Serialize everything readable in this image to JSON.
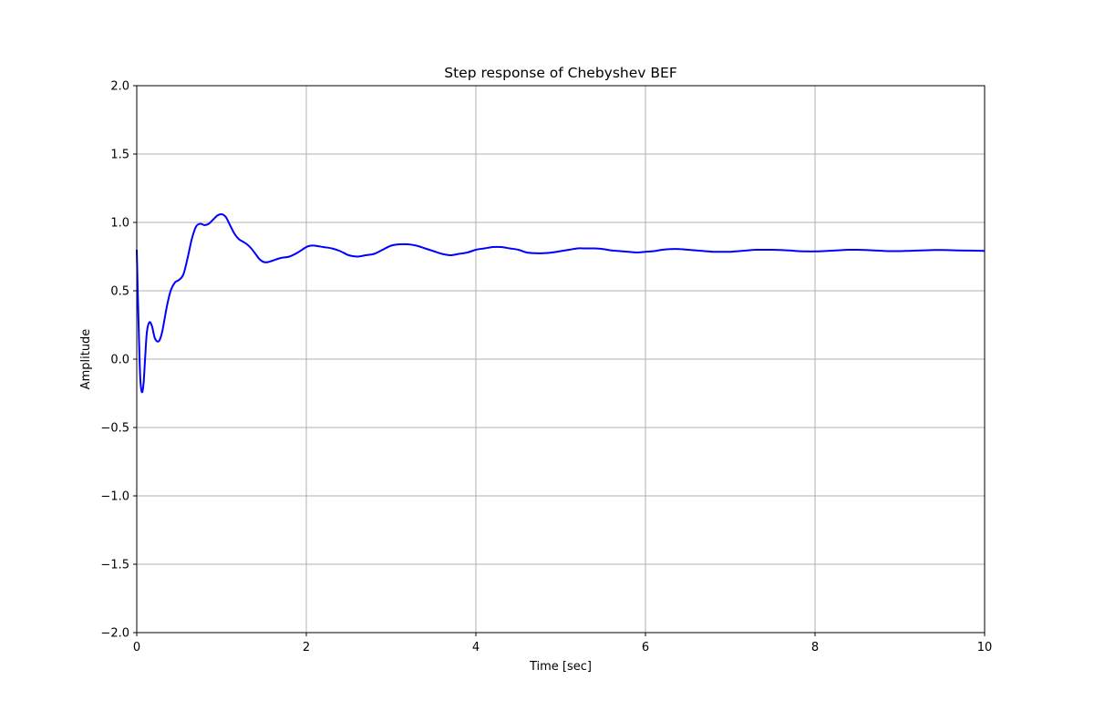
{
  "chart_data": {
    "type": "line",
    "title": "Step response of Chebyshev BEF",
    "xlabel": "Time  [sec]",
    "ylabel": "Amplitude",
    "xlim": [
      0,
      10
    ],
    "ylim": [
      -2.0,
      2.0
    ],
    "xticks": [
      0,
      2,
      4,
      6,
      8,
      10
    ],
    "xtick_labels": [
      "0",
      "2",
      "4",
      "6",
      "8",
      "10"
    ],
    "yticks": [
      -2.0,
      -1.5,
      -1.0,
      -0.5,
      0.0,
      0.5,
      1.0,
      1.5,
      2.0
    ],
    "ytick_labels": [
      "−2.0",
      "−1.5",
      "−1.0",
      "−0.5",
      "0.0",
      "0.5",
      "1.0",
      "1.5",
      "2.0"
    ],
    "grid": true,
    "legend": "none",
    "series": [
      {
        "color": "#0000ff",
        "x": [
          0,
          0.02,
          0.04,
          0.06,
          0.08,
          0.1,
          0.12,
          0.15,
          0.18,
          0.21,
          0.24,
          0.27,
          0.3,
          0.33,
          0.36,
          0.4,
          0.45,
          0.5,
          0.55,
          0.6,
          0.65,
          0.7,
          0.75,
          0.8,
          0.85,
          0.9,
          0.95,
          1.0,
          1.05,
          1.1,
          1.15,
          1.2,
          1.25,
          1.3,
          1.35,
          1.4,
          1.45,
          1.5,
          1.55,
          1.6,
          1.7,
          1.8,
          1.9,
          2.0,
          2.05,
          2.1,
          2.2,
          2.3,
          2.4,
          2.5,
          2.6,
          2.7,
          2.8,
          2.9,
          3.0,
          3.1,
          3.2,
          3.3,
          3.4,
          3.5,
          3.6,
          3.7,
          3.8,
          3.9,
          4.0,
          4.1,
          4.2,
          4.3,
          4.4,
          4.5,
          4.6,
          4.7,
          4.8,
          4.9,
          5.0,
          5.1,
          5.2,
          5.3,
          5.4,
          5.5,
          5.6,
          5.7,
          5.8,
          5.9,
          6.0,
          6.1,
          6.2,
          6.3,
          6.4,
          6.5,
          6.6,
          6.7,
          6.8,
          6.9,
          7.0,
          7.1,
          7.2,
          7.3,
          7.4,
          7.5,
          7.6,
          7.7,
          7.8,
          7.9,
          8.0,
          8.1,
          8.2,
          8.3,
          8.4,
          8.5,
          8.6,
          8.7,
          8.8,
          8.9,
          9.0,
          9.1,
          9.2,
          9.3,
          9.4,
          9.5,
          9.6,
          9.7,
          9.8,
          9.9,
          10.0
        ],
        "y": [
          0.8,
          0.3,
          -0.12,
          -0.24,
          -0.18,
          0.02,
          0.2,
          0.27,
          0.24,
          0.16,
          0.13,
          0.14,
          0.2,
          0.3,
          0.4,
          0.5,
          0.56,
          0.58,
          0.62,
          0.74,
          0.88,
          0.97,
          0.99,
          0.98,
          0.99,
          1.02,
          1.05,
          1.06,
          1.04,
          0.98,
          0.92,
          0.88,
          0.86,
          0.84,
          0.81,
          0.77,
          0.73,
          0.71,
          0.71,
          0.72,
          0.74,
          0.75,
          0.78,
          0.82,
          0.83,
          0.83,
          0.82,
          0.81,
          0.79,
          0.76,
          0.75,
          0.76,
          0.77,
          0.8,
          0.83,
          0.84,
          0.84,
          0.83,
          0.81,
          0.79,
          0.77,
          0.76,
          0.77,
          0.78,
          0.8,
          0.81,
          0.82,
          0.82,
          0.81,
          0.8,
          0.78,
          0.775,
          0.775,
          0.78,
          0.79,
          0.8,
          0.81,
          0.81,
          0.81,
          0.805,
          0.795,
          0.79,
          0.785,
          0.78,
          0.785,
          0.79,
          0.8,
          0.805,
          0.805,
          0.8,
          0.795,
          0.79,
          0.785,
          0.785,
          0.785,
          0.79,
          0.795,
          0.8,
          0.8,
          0.8,
          0.798,
          0.795,
          0.79,
          0.788,
          0.788,
          0.79,
          0.793,
          0.797,
          0.8,
          0.8,
          0.798,
          0.795,
          0.792,
          0.79,
          0.79,
          0.792,
          0.794,
          0.796,
          0.798,
          0.798,
          0.797,
          0.795,
          0.794,
          0.793,
          0.792
        ]
      }
    ]
  }
}
